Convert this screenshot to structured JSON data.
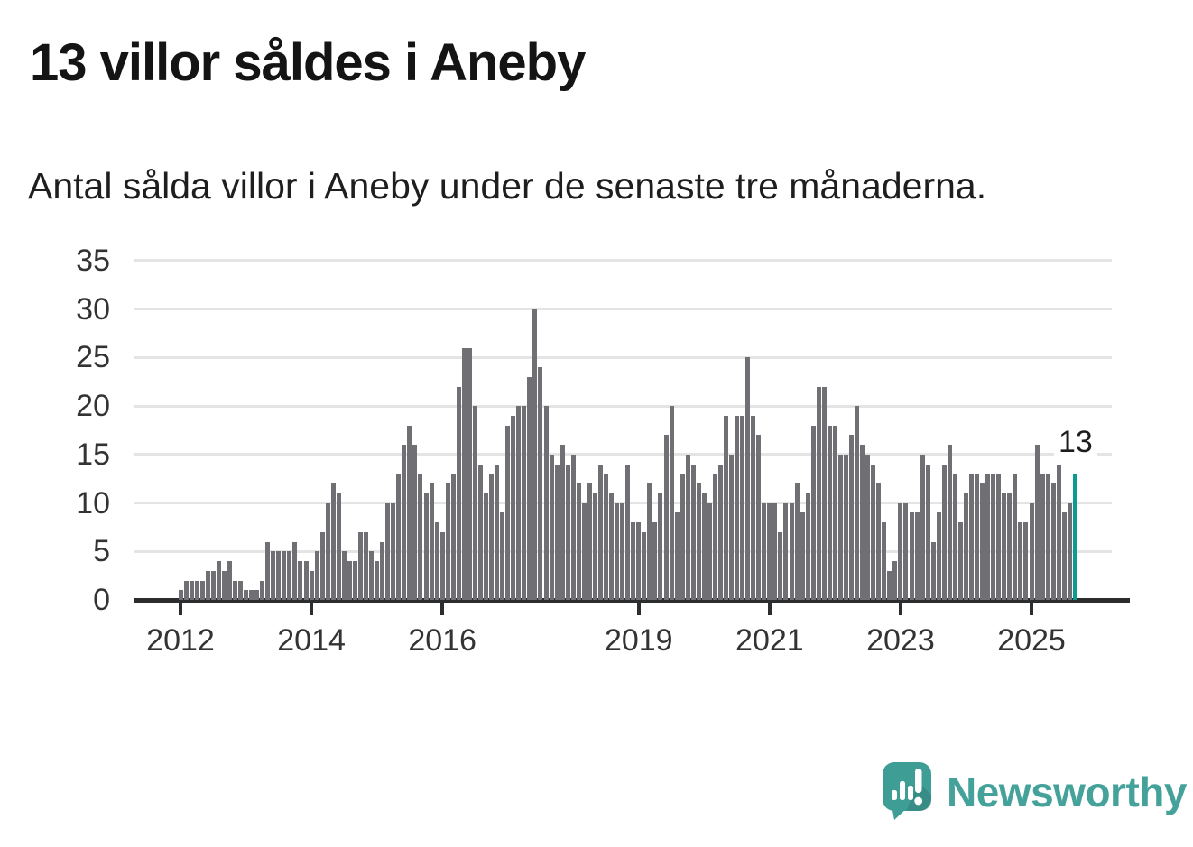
{
  "header": {
    "title": "13 villor såldes i Aneby",
    "subtitle": "Antal sålda villor i Aneby under de senaste tre månaderna."
  },
  "chart_data": {
    "type": "bar",
    "title": "13 villor såldes i Aneby",
    "x_start": "2012-01",
    "x_interval": "month",
    "y_ticks": [
      0,
      5,
      10,
      15,
      20,
      25,
      30,
      35
    ],
    "ylim": [
      0,
      36
    ],
    "x_tick_labels": [
      "2012",
      "2014",
      "2016",
      "2019",
      "2021",
      "2023",
      "2025"
    ],
    "grid": "horizontal",
    "bar_color": "#6f6f74",
    "highlight_color": "#0b9b93",
    "values_by_year": {
      "2012": [
        1,
        2,
        2,
        2,
        2,
        3,
        3,
        4,
        3,
        4,
        2,
        2
      ],
      "2013": [
        1,
        1,
        1,
        2,
        6,
        5,
        5,
        5,
        5,
        6,
        4,
        4
      ],
      "2014": [
        3,
        5,
        7,
        10,
        12,
        11,
        5,
        4,
        4,
        7,
        7,
        5
      ],
      "2015": [
        4,
        6,
        10,
        10,
        13,
        16,
        18,
        16,
        13,
        11,
        12,
        8
      ],
      "2016": [
        7,
        12,
        13,
        22,
        26,
        26,
        20,
        14,
        11,
        13,
        14,
        9
      ],
      "2017": [
        18,
        19,
        20,
        20,
        23,
        30,
        24,
        20,
        15,
        14,
        16,
        14
      ],
      "2018": [
        15,
        12,
        10,
        12,
        11,
        14,
        13,
        11,
        10,
        10,
        14,
        8
      ],
      "2019": [
        8,
        7,
        12,
        8,
        11,
        17,
        20,
        9,
        13,
        15,
        14,
        12
      ],
      "2020": [
        11,
        10,
        13,
        14,
        19,
        15,
        19,
        19,
        25,
        19,
        17,
        10
      ],
      "2021": [
        10,
        10,
        7,
        10,
        10,
        12,
        9,
        11,
        18,
        22,
        22,
        18
      ],
      "2022": [
        18,
        15,
        15,
        17,
        20,
        16,
        15,
        14,
        12,
        8,
        3,
        4
      ],
      "2023": [
        10,
        10,
        9,
        9,
        15,
        14,
        6,
        9,
        14,
        16,
        13,
        8
      ],
      "2024": [
        11,
        13,
        13,
        12,
        13,
        13,
        13,
        11,
        11,
        13,
        8,
        8
      ],
      "2025": [
        10,
        16,
        13,
        13,
        12,
        14,
        9,
        10,
        13
      ]
    },
    "highlight": {
      "position": "last",
      "value": 13,
      "label": "13"
    }
  },
  "logo": {
    "name": "Newsworthy",
    "icon": "newsworthy-speech-bubble-chart-icon",
    "icon_color": "#3e9e95",
    "text_color": "#45a29a"
  }
}
